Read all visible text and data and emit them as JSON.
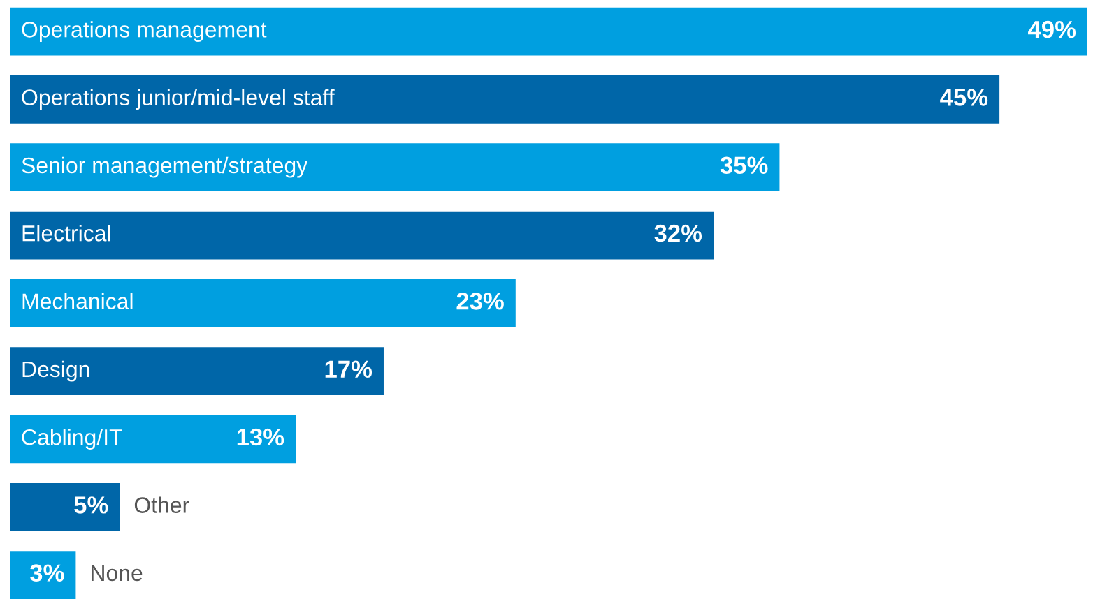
{
  "chart_data": {
    "type": "bar",
    "orientation": "horizontal",
    "tick_labels": false,
    "value_labels": [
      "49%",
      "45%",
      "35%",
      "32%",
      "23%",
      "17%",
      "13%",
      "5%",
      "3%"
    ],
    "categories": [
      "Operations management",
      "Operations junior/mid-level staff",
      "Senior management/strategy",
      "Electrical",
      "Mechanical",
      "Design",
      "Cabling/IT",
      "Other",
      "None"
    ],
    "values": [
      49,
      45,
      35,
      32,
      23,
      17,
      13,
      5,
      3
    ],
    "colors": [
      "#009fe0",
      "#0066a8",
      "#009fe0",
      "#0066a8",
      "#009fe0",
      "#0066a8",
      "#009fe0",
      "#0066a8",
      "#009fe0"
    ]
  }
}
